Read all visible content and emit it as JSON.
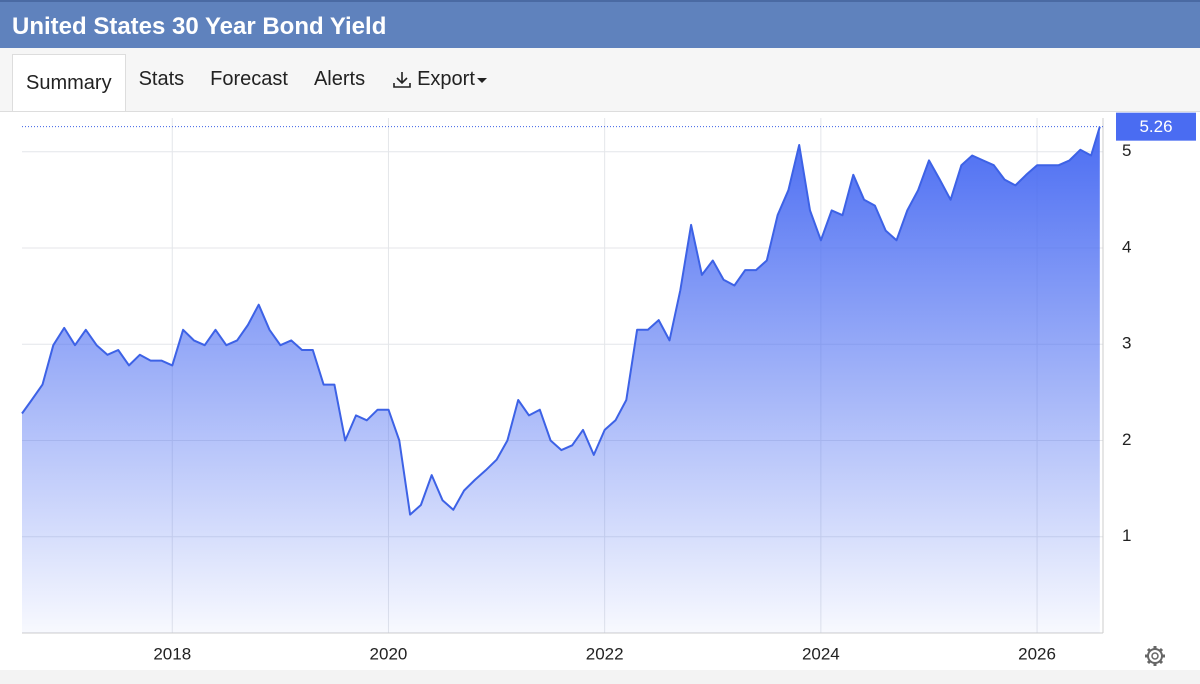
{
  "header": {
    "title": "United States 30 Year Bond Yield"
  },
  "tabs": [
    "Summary",
    "Stats",
    "Forecast",
    "Alerts",
    "Export"
  ],
  "chart_data": {
    "type": "area",
    "color": "#3d62e6",
    "grid": true,
    "x": [
      2016.61,
      2016.7,
      2016.8,
      2016.9,
      2017.0,
      2017.1,
      2017.2,
      2017.3,
      2017.4,
      2017.5,
      2017.6,
      2017.7,
      2017.8,
      2017.9,
      2018.0,
      2018.1,
      2018.2,
      2018.3,
      2018.4,
      2018.5,
      2018.6,
      2018.7,
      2018.8,
      2018.9,
      2019.0,
      2019.1,
      2019.2,
      2019.3,
      2019.4,
      2019.5,
      2019.6,
      2019.7,
      2019.8,
      2019.9,
      2020.0,
      2020.1,
      2020.2,
      2020.3,
      2020.4,
      2020.5,
      2020.6,
      2020.7,
      2020.8,
      2020.9,
      2021.0,
      2021.1,
      2021.2,
      2021.3,
      2021.4,
      2021.5,
      2021.6,
      2021.7,
      2021.8,
      2021.9,
      2022.0,
      2022.1,
      2022.2,
      2022.3,
      2022.4,
      2022.5,
      2022.6,
      2022.7,
      2022.8,
      2022.9,
      2023.0,
      2023.1,
      2023.2,
      2023.3,
      2023.4,
      2023.5,
      2023.6,
      2023.7,
      2023.8,
      2023.9,
      2024.0,
      2024.1,
      2024.2,
      2024.3,
      2024.4,
      2024.5,
      2024.6,
      2024.7,
      2024.8,
      2024.9,
      2025.0,
      2025.1,
      2025.2,
      2025.3,
      2025.4,
      2025.5,
      2025.6,
      2025.7,
      2025.8,
      2025.9,
      2026.0,
      2026.1,
      2026.2,
      2026.3,
      2026.4,
      2026.5,
      2026.58
    ],
    "values": [
      2.28,
      2.42,
      2.58,
      2.99,
      3.17,
      2.99,
      3.15,
      2.99,
      2.89,
      2.94,
      2.78,
      2.89,
      2.83,
      2.83,
      2.78,
      3.15,
      3.04,
      2.99,
      3.15,
      2.99,
      3.04,
      3.2,
      3.41,
      3.15,
      2.99,
      3.04,
      2.94,
      2.94,
      2.58,
      2.58,
      2.0,
      2.26,
      2.21,
      2.32,
      2.32,
      2.0,
      1.23,
      1.33,
      1.64,
      1.38,
      1.28,
      1.48,
      1.59,
      1.69,
      1.8,
      2.0,
      2.42,
      2.26,
      2.32,
      2.0,
      1.9,
      1.95,
      2.11,
      1.85,
      2.11,
      2.21,
      2.42,
      3.15,
      3.15,
      3.25,
      3.04,
      3.56,
      4.24,
      3.72,
      3.87,
      3.67,
      3.61,
      3.77,
      3.77,
      3.87,
      4.34,
      4.6,
      5.07,
      4.39,
      4.08,
      4.39,
      4.34,
      4.76,
      4.5,
      4.44,
      4.18,
      4.08,
      4.39,
      4.6,
      4.91,
      4.71,
      4.5,
      4.86,
      4.96,
      4.91,
      4.86,
      4.71,
      4.65,
      4.76,
      4.86,
      4.86,
      4.86,
      4.91,
      5.02,
      4.96,
      5.26
    ],
    "xlim": [
      2016.61,
      2026.61
    ],
    "xticks": [
      2018,
      2020,
      2022,
      2024,
      2026
    ],
    "ylim": [
      0,
      5.35
    ],
    "yticks": [
      1,
      2,
      3,
      4,
      5
    ]
  }
}
